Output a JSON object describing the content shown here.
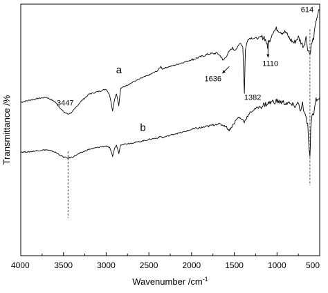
{
  "chart_data": {
    "type": "line",
    "xlabel": "Wavenumber /cm",
    "xlabel_sup": "-1",
    "ylabel": "Transmittance /%",
    "xlim": [
      4000,
      500
    ],
    "x_reversed": true,
    "x_ticks": [
      4000,
      3500,
      3000,
      2500,
      2000,
      1500,
      1000,
      500
    ],
    "y_tick_labels": false,
    "y_range_units": "relative transmittance (arbitrary, 0 = bottom axis, 100 = top axis)",
    "ylim": [
      0,
      100
    ],
    "grid": false,
    "legend": "none",
    "series": [
      {
        "label": "a",
        "color": "#000000",
        "points": [
          [
            4000,
            61.0
          ],
          [
            3900,
            61.8
          ],
          [
            3800,
            62.5
          ],
          [
            3700,
            63.0
          ],
          [
            3600,
            61.2
          ],
          [
            3500,
            57.2
          ],
          [
            3447,
            56.3
          ],
          [
            3400,
            57.0
          ],
          [
            3300,
            61.2
          ],
          [
            3200,
            64.2
          ],
          [
            3100,
            65.2
          ],
          [
            3000,
            66.2
          ],
          [
            2960,
            64.0
          ],
          [
            2925,
            57.7
          ],
          [
            2900,
            62.4
          ],
          [
            2880,
            64.5
          ],
          [
            2852,
            59.8
          ],
          [
            2830,
            66.5
          ],
          [
            2700,
            68.8
          ],
          [
            2600,
            70.4
          ],
          [
            2500,
            71.8
          ],
          [
            2400,
            73.5
          ],
          [
            2360,
            75.2
          ],
          [
            2340,
            74.2
          ],
          [
            2300,
            74.8
          ],
          [
            2200,
            75.7
          ],
          [
            2100,
            76.8
          ],
          [
            2000,
            77.9
          ],
          [
            1900,
            79.0
          ],
          [
            1800,
            80.2
          ],
          [
            1700,
            80.5
          ],
          [
            1650,
            79.0
          ],
          [
            1636,
            77.5
          ],
          [
            1610,
            78.5
          ],
          [
            1580,
            80.0
          ],
          [
            1550,
            81.6
          ],
          [
            1520,
            82.6
          ],
          [
            1500,
            81.8
          ],
          [
            1460,
            82.8
          ],
          [
            1430,
            84.8
          ],
          [
            1400,
            83.0
          ],
          [
            1382,
            64.5
          ],
          [
            1370,
            82.0
          ],
          [
            1340,
            86.2
          ],
          [
            1300,
            86.6
          ],
          [
            1250,
            86.4
          ],
          [
            1200,
            86.6
          ],
          [
            1150,
            87.0
          ],
          [
            1120,
            84.5
          ],
          [
            1110,
            82.2
          ],
          [
            1100,
            84.5
          ],
          [
            1050,
            89.0
          ],
          [
            1000,
            90.2
          ],
          [
            950,
            89.0
          ],
          [
            900,
            88.8
          ],
          [
            850,
            86.2
          ],
          [
            800,
            84.6
          ],
          [
            750,
            86.8
          ],
          [
            720,
            84.9
          ],
          [
            690,
            83.3
          ],
          [
            660,
            86.7
          ],
          [
            640,
            82.5
          ],
          [
            614,
            80.0
          ],
          [
            600,
            83.5
          ],
          [
            570,
            86.7
          ],
          [
            540,
            94.0
          ],
          [
            520,
            96.5
          ],
          [
            500,
            97.5
          ]
        ]
      },
      {
        "label": "b",
        "color": "#000000",
        "points": [
          [
            4000,
            41.2
          ],
          [
            3900,
            41.3
          ],
          [
            3800,
            41.8
          ],
          [
            3700,
            42.1
          ],
          [
            3600,
            41.2
          ],
          [
            3500,
            39.2
          ],
          [
            3447,
            38.8
          ],
          [
            3400,
            39.2
          ],
          [
            3300,
            40.8
          ],
          [
            3200,
            42.3
          ],
          [
            3100,
            43.0
          ],
          [
            3000,
            43.6
          ],
          [
            2960,
            42.9
          ],
          [
            2925,
            39.6
          ],
          [
            2900,
            42.7
          ],
          [
            2880,
            43.9
          ],
          [
            2852,
            40.8
          ],
          [
            2830,
            44.2
          ],
          [
            2700,
            44.8
          ],
          [
            2600,
            45.4
          ],
          [
            2500,
            46.2
          ],
          [
            2400,
            46.8
          ],
          [
            2360,
            47.4
          ],
          [
            2340,
            46.9
          ],
          [
            2300,
            47.4
          ],
          [
            2200,
            48.4
          ],
          [
            2100,
            49.1
          ],
          [
            2000,
            50.2
          ],
          [
            1900,
            50.8
          ],
          [
            1800,
            51.5
          ],
          [
            1700,
            52.4
          ],
          [
            1650,
            52.1
          ],
          [
            1600,
            51.5
          ],
          [
            1560,
            49.8
          ],
          [
            1520,
            51.8
          ],
          [
            1480,
            53.9
          ],
          [
            1450,
            55.0
          ],
          [
            1400,
            54.0
          ],
          [
            1382,
            53.2
          ],
          [
            1350,
            55.2
          ],
          [
            1300,
            57.3
          ],
          [
            1250,
            58.5
          ],
          [
            1200,
            59.2
          ],
          [
            1150,
            60.0
          ],
          [
            1100,
            60.6
          ],
          [
            1050,
            61.2
          ],
          [
            1000,
            61.4
          ],
          [
            950,
            61.0
          ],
          [
            900,
            60.7
          ],
          [
            850,
            60.4
          ],
          [
            800,
            59.4
          ],
          [
            750,
            60.6
          ],
          [
            720,
            57.4
          ],
          [
            700,
            60.4
          ],
          [
            680,
            56.0
          ],
          [
            660,
            54.8
          ],
          [
            640,
            52.0
          ],
          [
            625,
            42.0
          ],
          [
            614,
            38.5
          ],
          [
            605,
            50.0
          ],
          [
            590,
            56.8
          ],
          [
            570,
            55.5
          ],
          [
            550,
            62.0
          ],
          [
            520,
            62.6
          ],
          [
            500,
            63.0
          ]
        ]
      }
    ],
    "series_labels": [
      {
        "text": "a",
        "x": 2850,
        "y": 72.5
      },
      {
        "text": "b",
        "x": 2570,
        "y": 49.6
      }
    ],
    "annotations": [
      {
        "text": "3447",
        "x": 3447,
        "y": 59.8
      },
      {
        "text": "1636",
        "x": 1636,
        "y": 69.3
      },
      {
        "text": "1382",
        "x": 1382,
        "y": 62.0
      },
      {
        "text": "1110",
        "x": 1110,
        "y": 75.4
      },
      {
        "text": "614",
        "x": 614,
        "y": 96.8
      }
    ]
  }
}
